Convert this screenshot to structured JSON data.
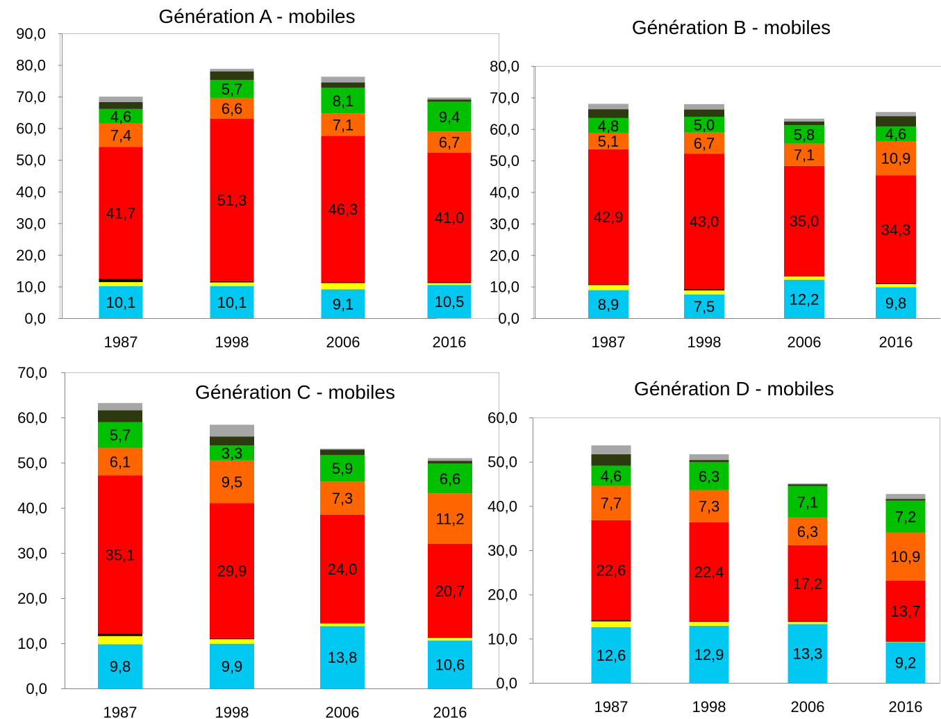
{
  "chart_data": [
    {
      "type": "bar",
      "stacked": true,
      "title": "Génération A - mobiles",
      "categories": [
        "1987",
        "1998",
        "2006",
        "2016"
      ],
      "ylim": [
        0,
        90
      ],
      "yticks": [
        "0,0",
        "10,0",
        "20,0",
        "30,0",
        "40,0",
        "50,0",
        "60,0",
        "70,0",
        "80,0",
        "90,0"
      ],
      "grid": false,
      "legend": "none",
      "series": [
        {
          "color": "#00c8f0",
          "values": [
            10.1,
            10.1,
            9.1,
            10.5
          ],
          "labels": [
            "10,1",
            "10,1",
            "9,1",
            "10,5"
          ]
        },
        {
          "color": "#ffff00",
          "values": [
            1.3,
            1.2,
            2.0,
            0.6
          ],
          "labels": [
            "",
            "",
            "",
            ""
          ]
        },
        {
          "color": "#000000",
          "values": [
            1.0,
            0.4,
            0.2,
            0.2
          ],
          "labels": [
            "",
            "",
            "",
            ""
          ]
        },
        {
          "color": "#ff0000",
          "values": [
            41.7,
            51.3,
            46.3,
            41.0
          ],
          "labels": [
            "41,7",
            "51,3",
            "46,3",
            "41,0"
          ]
        },
        {
          "color": "#ff6600",
          "values": [
            7.4,
            6.6,
            7.1,
            6.7
          ],
          "labels": [
            "7,4",
            "6,6",
            "7,1",
            "6,7"
          ]
        },
        {
          "color": "#00c000",
          "values": [
            4.6,
            5.7,
            8.1,
            9.4
          ],
          "labels": [
            "4,6",
            "5,7",
            "8,1",
            "9,4"
          ]
        },
        {
          "color": "#2d3a10",
          "values": [
            2.2,
            2.7,
            1.7,
            0.7
          ],
          "labels": [
            "",
            "",
            "",
            ""
          ]
        },
        {
          "color": "#a6a6a6",
          "values": [
            1.7,
            0.8,
            1.8,
            0.6
          ],
          "labels": [
            "",
            "",
            "",
            ""
          ]
        }
      ]
    },
    {
      "type": "bar",
      "stacked": true,
      "title": "Génération B - mobiles",
      "categories": [
        "1987",
        "1998",
        "2006",
        "2016"
      ],
      "ylim": [
        0,
        80
      ],
      "yticks": [
        "0,0",
        "10,0",
        "20,0",
        "30,0",
        "40,0",
        "50,0",
        "60,0",
        "70,0",
        "80,0"
      ],
      "grid": false,
      "legend": "none",
      "series": [
        {
          "color": "#00c8f0",
          "values": [
            8.9,
            7.5,
            12.2,
            9.8
          ],
          "labels": [
            "8,9",
            "7,5",
            "12,2",
            "9,8"
          ]
        },
        {
          "color": "#ffff00",
          "values": [
            1.6,
            1.3,
            1.0,
            1.0
          ],
          "labels": [
            "",
            "",
            "",
            ""
          ]
        },
        {
          "color": "#000000",
          "values": [
            0.2,
            0.4,
            0.1,
            0.2
          ],
          "labels": [
            "",
            "",
            "",
            ""
          ]
        },
        {
          "color": "#ff0000",
          "values": [
            42.9,
            43.0,
            35.0,
            34.3
          ],
          "labels": [
            "42,9",
            "43,0",
            "35,0",
            "34,3"
          ]
        },
        {
          "color": "#ff6600",
          "values": [
            5.1,
            6.7,
            7.1,
            10.9
          ],
          "labels": [
            "5,1",
            "6,7",
            "7,1",
            "10,9"
          ]
        },
        {
          "color": "#00c000",
          "values": [
            4.8,
            5.0,
            5.8,
            4.6
          ],
          "labels": [
            "4,8",
            "5,0",
            "5,8",
            "4,6"
          ]
        },
        {
          "color": "#2d3a10",
          "values": [
            2.8,
            2.3,
            1.2,
            3.3
          ],
          "labels": [
            "",
            "",
            "",
            ""
          ]
        },
        {
          "color": "#a6a6a6",
          "values": [
            1.7,
            1.7,
            0.9,
            1.3
          ],
          "labels": [
            "",
            "",
            "",
            ""
          ]
        }
      ]
    },
    {
      "type": "bar",
      "stacked": true,
      "title": "Génération C - mobiles",
      "categories": [
        "1987",
        "1998",
        "2006",
        "2016"
      ],
      "ylim": [
        0,
        70
      ],
      "yticks": [
        "0,0",
        "10,0",
        "20,0",
        "30,0",
        "40,0",
        "50,0",
        "60,0",
        "70,0"
      ],
      "grid": false,
      "legend": "none",
      "series": [
        {
          "color": "#00c8f0",
          "values": [
            9.8,
            9.9,
            13.8,
            10.6
          ],
          "labels": [
            "9,8",
            "9,9",
            "13,8",
            "10,6"
          ]
        },
        {
          "color": "#ffff00",
          "values": [
            1.8,
            1.0,
            0.6,
            0.6
          ],
          "labels": [
            "",
            "",
            "",
            ""
          ]
        },
        {
          "color": "#000000",
          "values": [
            0.5,
            0.2,
            0.1,
            0.1
          ],
          "labels": [
            "",
            "",
            "",
            ""
          ]
        },
        {
          "color": "#ff0000",
          "values": [
            35.1,
            29.9,
            24.0,
            20.7
          ],
          "labels": [
            "35,1",
            "29,9",
            "24,0",
            "20,7"
          ]
        },
        {
          "color": "#ff6600",
          "values": [
            6.1,
            9.5,
            7.3,
            11.2
          ],
          "labels": [
            "6,1",
            "9,5",
            "7,3",
            "11,2"
          ]
        },
        {
          "color": "#00c000",
          "values": [
            5.7,
            3.3,
            5.9,
            6.6
          ],
          "labels": [
            "5,7",
            "3,3",
            "5,9",
            "6,6"
          ]
        },
        {
          "color": "#2d3a10",
          "values": [
            2.6,
            2.0,
            1.2,
            0.6
          ],
          "labels": [
            "",
            "",
            "",
            ""
          ]
        },
        {
          "color": "#a6a6a6",
          "values": [
            1.6,
            2.6,
            0.2,
            0.6
          ],
          "labels": [
            "",
            "",
            "",
            ""
          ]
        }
      ]
    },
    {
      "type": "bar",
      "stacked": true,
      "title": "Génération D - mobiles",
      "categories": [
        "1987",
        "1998",
        "2006",
        "2016"
      ],
      "ylim": [
        0,
        60
      ],
      "yticks": [
        "0,0",
        "10,0",
        "20,0",
        "30,0",
        "40,0",
        "50,0",
        "60,0"
      ],
      "grid": false,
      "legend": "none",
      "series": [
        {
          "color": "#00c8f0",
          "values": [
            12.6,
            12.9,
            13.3,
            9.2
          ],
          "labels": [
            "12,6",
            "12,9",
            "13,3",
            "9,2"
          ]
        },
        {
          "color": "#ffff00",
          "values": [
            1.3,
            0.9,
            0.5,
            0.1
          ],
          "labels": [
            "",
            "",
            "",
            ""
          ]
        },
        {
          "color": "#000000",
          "values": [
            0.3,
            0.1,
            0.1,
            0.1
          ],
          "labels": [
            "",
            "",
            "",
            ""
          ]
        },
        {
          "color": "#ff0000",
          "values": [
            22.6,
            22.4,
            17.2,
            13.7
          ],
          "labels": [
            "22,6",
            "22,4",
            "17,2",
            "13,7"
          ]
        },
        {
          "color": "#ff6600",
          "values": [
            7.7,
            7.3,
            6.3,
            10.9
          ],
          "labels": [
            "7,7",
            "7,3",
            "6,3",
            "10,9"
          ]
        },
        {
          "color": "#00c000",
          "values": [
            4.6,
            6.3,
            7.1,
            7.2
          ],
          "labels": [
            "4,6",
            "6,3",
            "7,1",
            "7,2"
          ]
        },
        {
          "color": "#2d3a10",
          "values": [
            2.6,
            0.5,
            0.4,
            0.4
          ],
          "labels": [
            "",
            "",
            "",
            ""
          ]
        },
        {
          "color": "#a6a6a6",
          "values": [
            2.0,
            1.3,
            0.2,
            1.1
          ],
          "labels": [
            "",
            "",
            "",
            ""
          ]
        }
      ]
    }
  ]
}
